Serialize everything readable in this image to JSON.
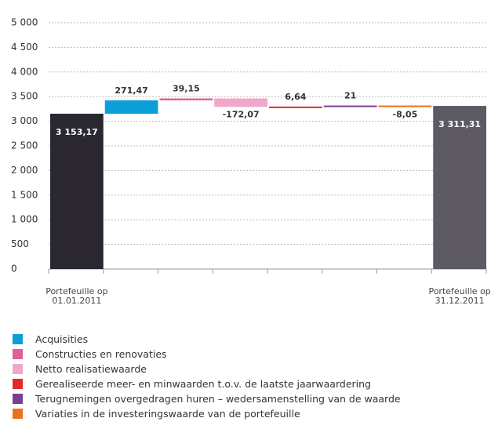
{
  "chart_data": {
    "type": "waterfall",
    "categories": [
      "Portefeuille op 01.01.2011",
      null,
      null,
      null,
      null,
      null,
      null,
      "Portefeuille op 31.12.2011"
    ],
    "values": [
      3153.17,
      271.47,
      39.15,
      -172.07,
      6.64,
      21,
      -8.05,
      3311.31
    ],
    "value_labels": [
      "3 153,17",
      "271,47",
      "39,15",
      "-172,07",
      "6,64",
      "21",
      "-8,05",
      "3 311,31"
    ],
    "colors": [
      "#2a2731",
      "#0a9fd9",
      "#e0609a",
      "#f1a7c9",
      "#e02a28",
      "#7a3f91",
      "#e8731e",
      "#5d5a63"
    ],
    "legend": [
      "Acquisities",
      "Constructies en renovaties",
      "Netto realisatiewaarde",
      "Gerealiseerde meer- en minwaarden t.o.v. de laatste jaarwaardering",
      "Terugnemingen overgedragen huren – wedersamenstelling van de waarde",
      "Variaties in de investeringswaarde van de portefeuille"
    ],
    "ylim": [
      0,
      5000
    ],
    "yticks": [
      0,
      500,
      {
        "value": 1000,
        "label": "1 000"
      },
      {
        "value": 1500,
        "label": "1 500"
      },
      {
        "value": 2000,
        "label": "2 000"
      },
      {
        "value": 2500,
        "label": "2 500"
      },
      {
        "value": 3000,
        "label": "3 000"
      },
      {
        "value": 3500,
        "label": "3 500"
      },
      {
        "value": 4000,
        "label": "4 000"
      },
      {
        "value": 4500,
        "label": "4 500"
      },
      {
        "value": 5000,
        "label": "5 000"
      }
    ],
    "grid": true
  }
}
